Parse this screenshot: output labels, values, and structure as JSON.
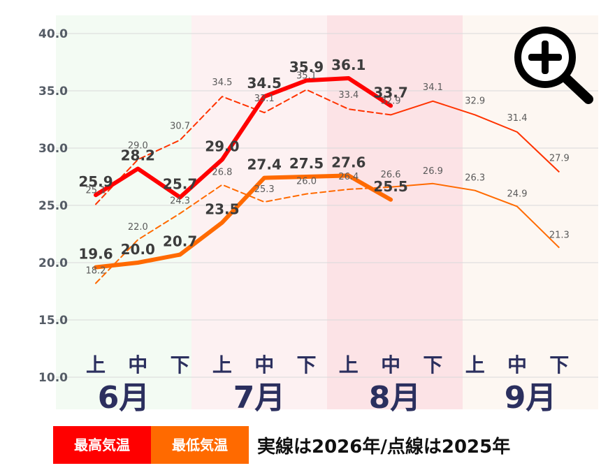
{
  "chart_data": {
    "type": "line",
    "y_ticks": [
      "40.0",
      "35.0",
      "30.0",
      "25.0",
      "20.0",
      "15.0",
      "10.0"
    ],
    "ylim": [
      10,
      40
    ],
    "months": [
      {
        "label": "6月",
        "bg": "#f3fbf3"
      },
      {
        "label": "7月",
        "bg": "#fdf1f2"
      },
      {
        "label": "8月",
        "bg": "#fce3e6"
      },
      {
        "label": "9月",
        "bg": "#fdf7f2"
      }
    ],
    "dekads": [
      "上",
      "中",
      "下"
    ],
    "series": [
      {
        "name": "最高気温",
        "year": "2026",
        "style": "solid",
        "color": "#ff0000",
        "values": [
          25.9,
          28.2,
          25.7,
          29.0,
          34.5,
          35.9,
          36.1,
          33.7
        ],
        "labels": [
          "25.9",
          "28.2",
          "25.7",
          "29.0",
          "34.5",
          "35.9",
          "36.1",
          "33.7"
        ]
      },
      {
        "name": "最低気温",
        "year": "2026",
        "style": "solid",
        "color": "#ff6a00",
        "values": [
          19.6,
          20.0,
          20.7,
          23.5,
          27.4,
          27.5,
          27.6,
          25.5
        ],
        "labels": [
          "19.6",
          "20.0",
          "20.7",
          "23.5",
          "27.4",
          "27.5",
          "27.6",
          "25.5"
        ]
      },
      {
        "name": "最高気温",
        "year": "2025",
        "style": "dashed",
        "color": "#ff3300",
        "values": [
          25.1,
          29.0,
          30.7,
          34.5,
          33.1,
          35.1,
          33.4,
          32.9,
          34.1,
          32.9,
          31.4,
          27.9
        ],
        "labels": [
          "25.1",
          "29.0",
          "30.7",
          "34.5",
          "33.1",
          "35.1",
          "33.4",
          "32.9",
          "34.1",
          "32.9",
          "31.4",
          "27.9"
        ]
      },
      {
        "name": "最低気温",
        "year": "2025",
        "style": "dashed",
        "color": "#ff6a00",
        "values": [
          18.2,
          22.0,
          24.3,
          26.8,
          25.3,
          26.0,
          26.4,
          26.6,
          26.9,
          26.3,
          24.9,
          21.3
        ],
        "labels": [
          "18.2",
          "22.0",
          "24.3",
          "26.8",
          "25.3",
          "26.0",
          "26.4",
          "26.6",
          "26.9",
          "26.3",
          "24.9",
          "21.3"
        ]
      }
    ]
  },
  "legend": {
    "max_label": "最高気温",
    "min_label": "最低気温",
    "note": "実線は2026年/点線は2025年",
    "max_color": "#ff0000",
    "min_color": "#ff6a00"
  },
  "zoom_icon": "zoom-in-icon"
}
